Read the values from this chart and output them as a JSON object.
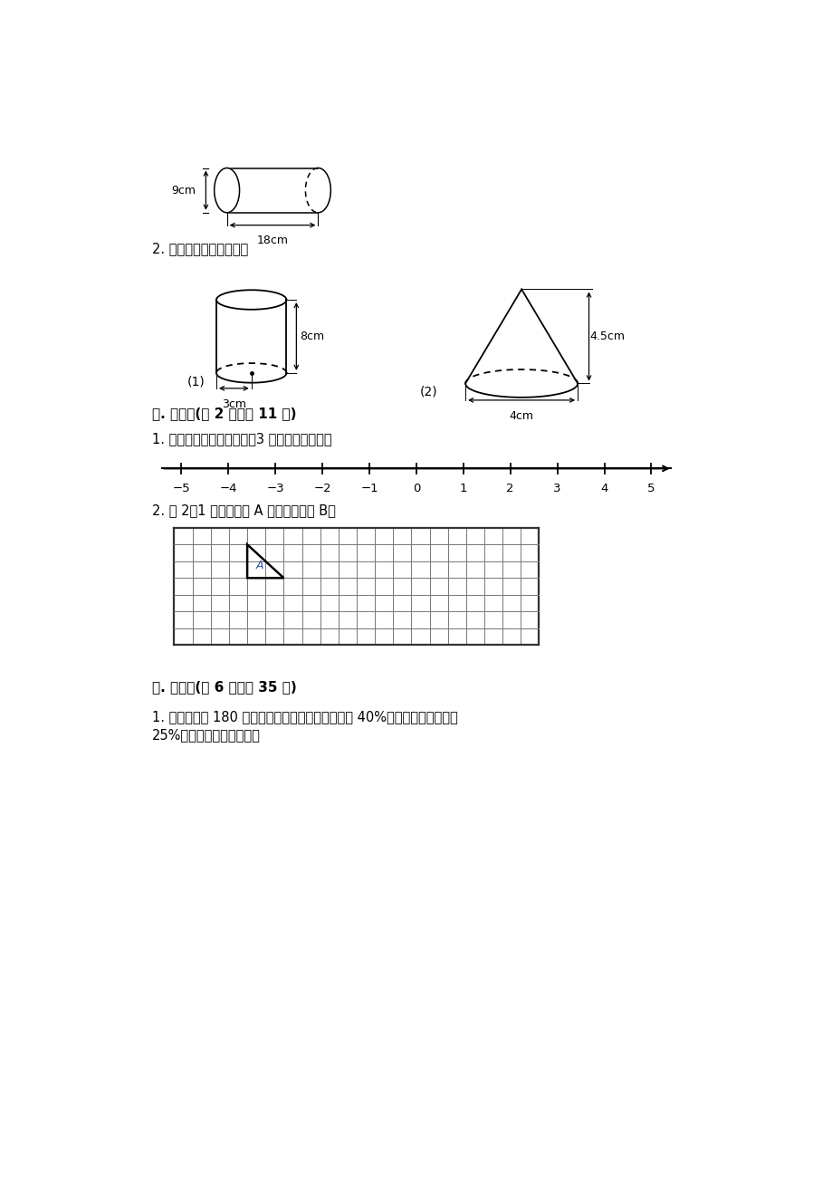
{
  "bg_color": "#ffffff",
  "text_color": "#000000",
  "section_title_1": "2. 计算下列图形的体积。",
  "cylinder1_label": "(1)",
  "cylinder1_r_label": "3cm",
  "cylinder1_h_label": "8cm",
  "cone_label": "(2)",
  "cone_r_label": "4cm",
  "cone_h_label": "4.5cm",
  "section_title_2": "五. 作图题(共 2 题，共 11 分)",
  "number_line_q": "1. 在下面直线上，画出比－3 大的数所在区域。",
  "grid_q": "2. 按 2：1 画出三角形 A 放大后的图形 B。",
  "section_title_3": "六. 解答题(共 6 题，共 35 分)",
  "word_problem_1a": "1. 笑笑看一本 180 页的故事书，第一周看了全书的 40%，第二周看了全书的",
  "word_problem_1b": "25%。两周共看了多少页？",
  "cylinder_top_label": "9cm",
  "cylinder_top_length_label": "18cm",
  "number_line_ticks": [
    -5,
    -4,
    -3,
    -2,
    -1,
    0,
    1,
    2,
    3,
    4,
    5
  ]
}
